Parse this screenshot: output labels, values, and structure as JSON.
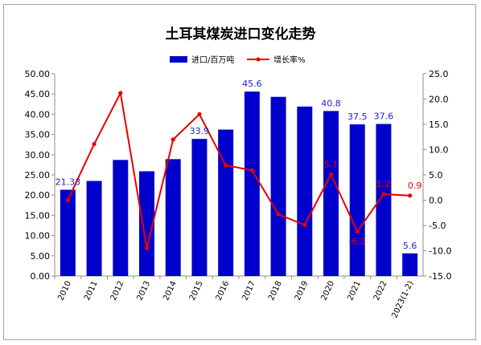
{
  "chart_data": {
    "type": "bar",
    "title": "土耳其煤炭进口变化走势",
    "categories": [
      "2010",
      "2011",
      "2012",
      "2013",
      "2014",
      "2015",
      "2016",
      "2017",
      "2018",
      "2019",
      "2020",
      "2021",
      "2022",
      "2023(1-2)"
    ],
    "series": [
      {
        "name": "进口/百万吨",
        "type": "bar",
        "axis": "left",
        "color": "#0000cc",
        "values": [
          21.33,
          23.5,
          28.7,
          25.9,
          28.9,
          33.9,
          36.2,
          45.6,
          44.3,
          41.9,
          40.8,
          37.5,
          37.6,
          5.6
        ]
      },
      {
        "name": "增长率%",
        "type": "line",
        "axis": "right",
        "color": "#e60000",
        "values": [
          0.0,
          11.1,
          21.2,
          -9.5,
          12.0,
          17.0,
          6.9,
          5.9,
          -2.8,
          -4.9,
          5.1,
          -6.2,
          1.2,
          0.9
        ]
      }
    ],
    "bar_data_labels": [
      {
        "index": 0,
        "text": "21.33"
      },
      {
        "index": 5,
        "text": "33.9"
      },
      {
        "index": 7,
        "text": "45.6"
      },
      {
        "index": 10,
        "text": "40.8"
      },
      {
        "index": 11,
        "text": "37.5"
      },
      {
        "index": 12,
        "text": "37.6"
      },
      {
        "index": 13,
        "text": "5.6"
      }
    ],
    "line_data_labels": [
      {
        "index": 10,
        "text": "5.1"
      },
      {
        "index": 11,
        "text": "-6.2"
      },
      {
        "index": 12,
        "text": "1.2"
      },
      {
        "index": 13,
        "text": "0.9"
      }
    ],
    "y_left": {
      "range": [
        0,
        50
      ],
      "step": 5,
      "ticks": [
        "0.00",
        "5.00",
        "10.00",
        "15.00",
        "20.00",
        "25.00",
        "30.00",
        "35.00",
        "40.00",
        "45.00",
        "50.00"
      ]
    },
    "y_right": {
      "range": [
        -15,
        25
      ],
      "step": 5,
      "ticks": [
        "-15.0",
        "-10.0",
        "-5.0",
        "0.0",
        "5.0",
        "10.0",
        "15.0",
        "20.0",
        "25.0"
      ]
    },
    "xlabel": "",
    "grid": false,
    "legend_position": "top-right"
  }
}
